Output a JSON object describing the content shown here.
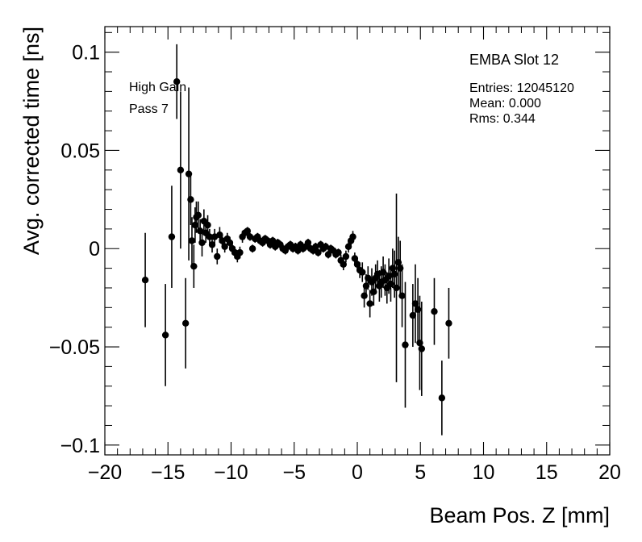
{
  "chart_data": {
    "type": "scatter",
    "title": "",
    "xlabel": "Beam Pos. Z [mm]",
    "ylabel": "Avg. corrected time [ns]",
    "xlim": [
      -20,
      20
    ],
    "ylim": [
      -0.105,
      0.113
    ],
    "x_ticks": [
      -20,
      -15,
      -10,
      -5,
      0,
      5,
      10,
      15,
      20
    ],
    "x_tick_labels": [
      "−20",
      "−15",
      "−10",
      "−5",
      "0",
      "5",
      "10",
      "15",
      "20"
    ],
    "y_ticks": [
      -0.1,
      -0.05,
      0,
      0.05,
      0.1
    ],
    "y_tick_labels": [
      "−0.1",
      "−0.05",
      "0",
      "0.05",
      "0.1"
    ],
    "grid": false,
    "annotations": {
      "left_line1": "High Gain",
      "left_line2": "Pass 7",
      "stats_title": "EMBA Slot 12",
      "entries": "Entries: 12045120",
      "mean": "Mean: 0.000",
      "rms": "Rms: 0.344"
    },
    "series": [
      {
        "marker_color": "#000000",
        "points": [
          {
            "x": -16.8,
            "y": -0.016,
            "err": 0.024
          },
          {
            "x": -15.2,
            "y": -0.044,
            "err": 0.026
          },
          {
            "x": -14.7,
            "y": 0.006,
            "err": 0.026
          },
          {
            "x": -14.3,
            "y": 0.085,
            "err": 0.019
          },
          {
            "x": -14.0,
            "y": 0.04,
            "err": 0.04
          },
          {
            "x": -13.6,
            "y": -0.038,
            "err": 0.023
          },
          {
            "x": -13.35,
            "y": 0.038,
            "err": 0.044
          },
          {
            "x": -13.2,
            "y": 0.025,
            "err": 0.013
          },
          {
            "x": -13.1,
            "y": 0.004,
            "err": 0.012
          },
          {
            "x": -12.95,
            "y": -0.009,
            "err": 0.011
          },
          {
            "x": -12.85,
            "y": 0.012,
            "err": 0.009
          },
          {
            "x": -12.75,
            "y": 0.016,
            "err": 0.008
          },
          {
            "x": -12.6,
            "y": 0.017,
            "err": 0.007
          },
          {
            "x": -12.45,
            "y": 0.009,
            "err": 0.006
          },
          {
            "x": -12.3,
            "y": 0.003,
            "err": 0.007
          },
          {
            "x": -12.15,
            "y": 0.014,
            "err": 0.006
          },
          {
            "x": -12.0,
            "y": 0.008,
            "err": 0.005
          },
          {
            "x": -11.85,
            "y": 0.012,
            "err": 0.005
          },
          {
            "x": -11.7,
            "y": 0.006,
            "err": 0.004
          },
          {
            "x": -11.5,
            "y": 0.002,
            "err": 0.004
          },
          {
            "x": -11.3,
            "y": 0.006,
            "err": 0.004
          },
          {
            "x": -11.1,
            "y": -0.004,
            "err": 0.004
          },
          {
            "x": -10.9,
            "y": 0.007,
            "err": 0.004
          },
          {
            "x": -10.7,
            "y": 0.004,
            "err": 0.003
          },
          {
            "x": -10.5,
            "y": 0.001,
            "err": 0.003
          },
          {
            "x": -10.3,
            "y": 0.005,
            "err": 0.003
          },
          {
            "x": -10.1,
            "y": 0.003,
            "err": 0.003
          },
          {
            "x": -9.9,
            "y": 0.0,
            "err": 0.003
          },
          {
            "x": -9.7,
            "y": -0.002,
            "err": 0.003
          },
          {
            "x": -9.5,
            "y": -0.004,
            "err": 0.003
          },
          {
            "x": -9.3,
            "y": -0.002,
            "err": 0.003
          },
          {
            "x": -9.1,
            "y": 0.006,
            "err": 0.003
          },
          {
            "x": -8.9,
            "y": 0.008,
            "err": 0.002
          },
          {
            "x": -8.7,
            "y": 0.009,
            "err": 0.002
          },
          {
            "x": -8.5,
            "y": 0.006,
            "err": 0.002
          },
          {
            "x": -8.3,
            "y": 0.0,
            "err": 0.002
          },
          {
            "x": -8.1,
            "y": 0.005,
            "err": 0.002
          },
          {
            "x": -7.9,
            "y": 0.006,
            "err": 0.002
          },
          {
            "x": -7.7,
            "y": 0.004,
            "err": 0.002
          },
          {
            "x": -7.5,
            "y": 0.003,
            "err": 0.002
          },
          {
            "x": -7.3,
            "y": 0.005,
            "err": 0.002
          },
          {
            "x": -7.1,
            "y": 0.004,
            "err": 0.002
          },
          {
            "x": -6.9,
            "y": 0.002,
            "err": 0.002
          },
          {
            "x": -6.7,
            "y": 0.004,
            "err": 0.002
          },
          {
            "x": -6.5,
            "y": 0.001,
            "err": 0.002
          },
          {
            "x": -6.3,
            "y": 0.003,
            "err": 0.002
          },
          {
            "x": -6.1,
            "y": 0.002,
            "err": 0.002
          },
          {
            "x": -5.9,
            "y": 0.0,
            "err": 0.002
          },
          {
            "x": -5.7,
            "y": -0.001,
            "err": 0.002
          },
          {
            "x": -5.5,
            "y": 0.001,
            "err": 0.002
          },
          {
            "x": -5.3,
            "y": 0.002,
            "err": 0.002
          },
          {
            "x": -5.1,
            "y": 0.0,
            "err": 0.002
          },
          {
            "x": -4.9,
            "y": 0.001,
            "err": 0.002
          },
          {
            "x": -4.7,
            "y": -0.001,
            "err": 0.002
          },
          {
            "x": -4.5,
            "y": 0.002,
            "err": 0.002
          },
          {
            "x": -4.3,
            "y": 0.0,
            "err": 0.002
          },
          {
            "x": -4.1,
            "y": 0.001,
            "err": 0.002
          },
          {
            "x": -3.9,
            "y": 0.003,
            "err": 0.002
          },
          {
            "x": -3.7,
            "y": 0.0,
            "err": 0.002
          },
          {
            "x": -3.5,
            "y": -0.001,
            "err": 0.002
          },
          {
            "x": -3.3,
            "y": 0.001,
            "err": 0.002
          },
          {
            "x": -3.1,
            "y": -0.002,
            "err": 0.002
          },
          {
            "x": -2.9,
            "y": 0.002,
            "err": 0.002
          },
          {
            "x": -2.7,
            "y": 0.0,
            "err": 0.002
          },
          {
            "x": -2.5,
            "y": 0.001,
            "err": 0.002
          },
          {
            "x": -2.3,
            "y": -0.003,
            "err": 0.002
          },
          {
            "x": -2.1,
            "y": 0.0,
            "err": 0.002
          },
          {
            "x": -1.9,
            "y": -0.001,
            "err": 0.002
          },
          {
            "x": -1.7,
            "y": -0.003,
            "err": 0.002
          },
          {
            "x": -1.5,
            "y": -0.002,
            "err": 0.002
          },
          {
            "x": -1.3,
            "y": -0.006,
            "err": 0.003
          },
          {
            "x": -1.1,
            "y": -0.008,
            "err": 0.003
          },
          {
            "x": -0.9,
            "y": -0.004,
            "err": 0.003
          },
          {
            "x": -0.7,
            "y": 0.001,
            "err": 0.003
          },
          {
            "x": -0.5,
            "y": 0.004,
            "err": 0.003
          },
          {
            "x": -0.35,
            "y": 0.006,
            "err": 0.003
          },
          {
            "x": -0.2,
            "y": -0.005,
            "err": 0.003
          },
          {
            "x": 0.0,
            "y": -0.008,
            "err": 0.003
          },
          {
            "x": 0.2,
            "y": -0.011,
            "err": 0.004
          },
          {
            "x": 0.4,
            "y": -0.012,
            "err": 0.005
          },
          {
            "x": 0.55,
            "y": -0.024,
            "err": 0.006
          },
          {
            "x": 0.7,
            "y": -0.019,
            "err": 0.006
          },
          {
            "x": 0.85,
            "y": -0.015,
            "err": 0.006
          },
          {
            "x": 1.0,
            "y": -0.028,
            "err": 0.007
          },
          {
            "x": 1.15,
            "y": -0.017,
            "err": 0.007
          },
          {
            "x": 1.3,
            "y": -0.022,
            "err": 0.007
          },
          {
            "x": 1.45,
            "y": -0.015,
            "err": 0.007
          },
          {
            "x": 1.6,
            "y": -0.013,
            "err": 0.007
          },
          {
            "x": 1.75,
            "y": -0.019,
            "err": 0.008
          },
          {
            "x": 1.9,
            "y": -0.017,
            "err": 0.008
          },
          {
            "x": 2.05,
            "y": -0.012,
            "err": 0.008
          },
          {
            "x": 2.2,
            "y": -0.016,
            "err": 0.008
          },
          {
            "x": 2.35,
            "y": -0.02,
            "err": 0.008
          },
          {
            "x": 2.5,
            "y": -0.014,
            "err": 0.009
          },
          {
            "x": 2.65,
            "y": -0.018,
            "err": 0.009
          },
          {
            "x": 2.8,
            "y": -0.01,
            "err": 0.01
          },
          {
            "x": 2.95,
            "y": -0.013,
            "err": 0.012
          },
          {
            "x": 3.1,
            "y": -0.02,
            "err": 0.048
          },
          {
            "x": 3.25,
            "y": -0.007,
            "err": 0.013
          },
          {
            "x": 3.4,
            "y": -0.01,
            "err": 0.014
          },
          {
            "x": 3.55,
            "y": -0.024,
            "err": 0.016
          },
          {
            "x": 3.8,
            "y": -0.049,
            "err": 0.032
          },
          {
            "x": 4.4,
            "y": -0.034,
            "err": 0.016
          },
          {
            "x": 4.6,
            "y": -0.028,
            "err": 0.02
          },
          {
            "x": 4.8,
            "y": -0.031,
            "err": 0.016
          },
          {
            "x": 4.95,
            "y": -0.048,
            "err": 0.024
          },
          {
            "x": 5.1,
            "y": -0.051,
            "err": 0.024
          },
          {
            "x": 6.1,
            "y": -0.032,
            "err": 0.017
          },
          {
            "x": 6.7,
            "y": -0.076,
            "err": 0.019
          },
          {
            "x": 7.25,
            "y": -0.038,
            "err": 0.018
          }
        ]
      }
    ]
  }
}
